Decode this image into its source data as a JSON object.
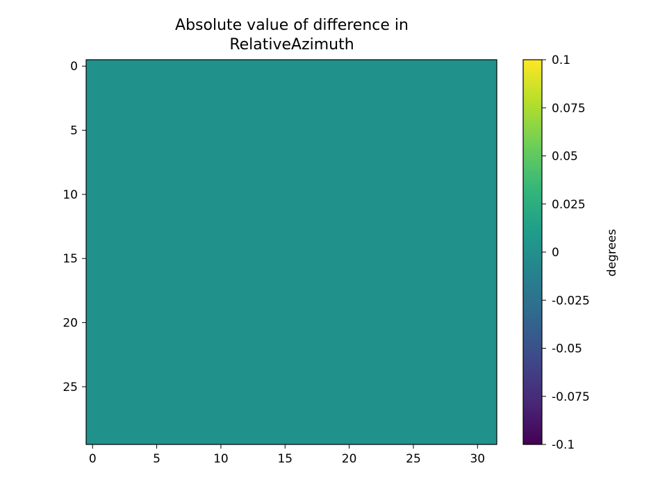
{
  "chart_data": {
    "type": "heatmap",
    "title_lines": [
      "Absolute value of difference in",
      "RelativeAzimuth"
    ],
    "x_range": [
      -0.5,
      31.5
    ],
    "y_range": [
      -0.5,
      29.5
    ],
    "x_ticks": [
      "0",
      "5",
      "10",
      "15",
      "20",
      "25",
      "30"
    ],
    "y_ticks": [
      "0",
      "5",
      "10",
      "15",
      "20",
      "25"
    ],
    "grid_shape": {
      "rows": 30,
      "cols": 32
    },
    "fill_value": 0,
    "fill_color": "#21918c",
    "colorbar": {
      "label": "degrees",
      "range": [
        -0.1,
        0.1
      ],
      "ticks": [
        "0.1",
        "0.075",
        "0.05",
        "0.025",
        "0",
        "-0.025",
        "-0.05",
        "-0.075",
        "-0.1"
      ],
      "colormap": [
        "#440154",
        "#482878",
        "#3e4989",
        "#31688e",
        "#26828e",
        "#1f9e89",
        "#35b779",
        "#6ece58",
        "#b5de2b",
        "#fde725"
      ]
    },
    "grid": false
  }
}
